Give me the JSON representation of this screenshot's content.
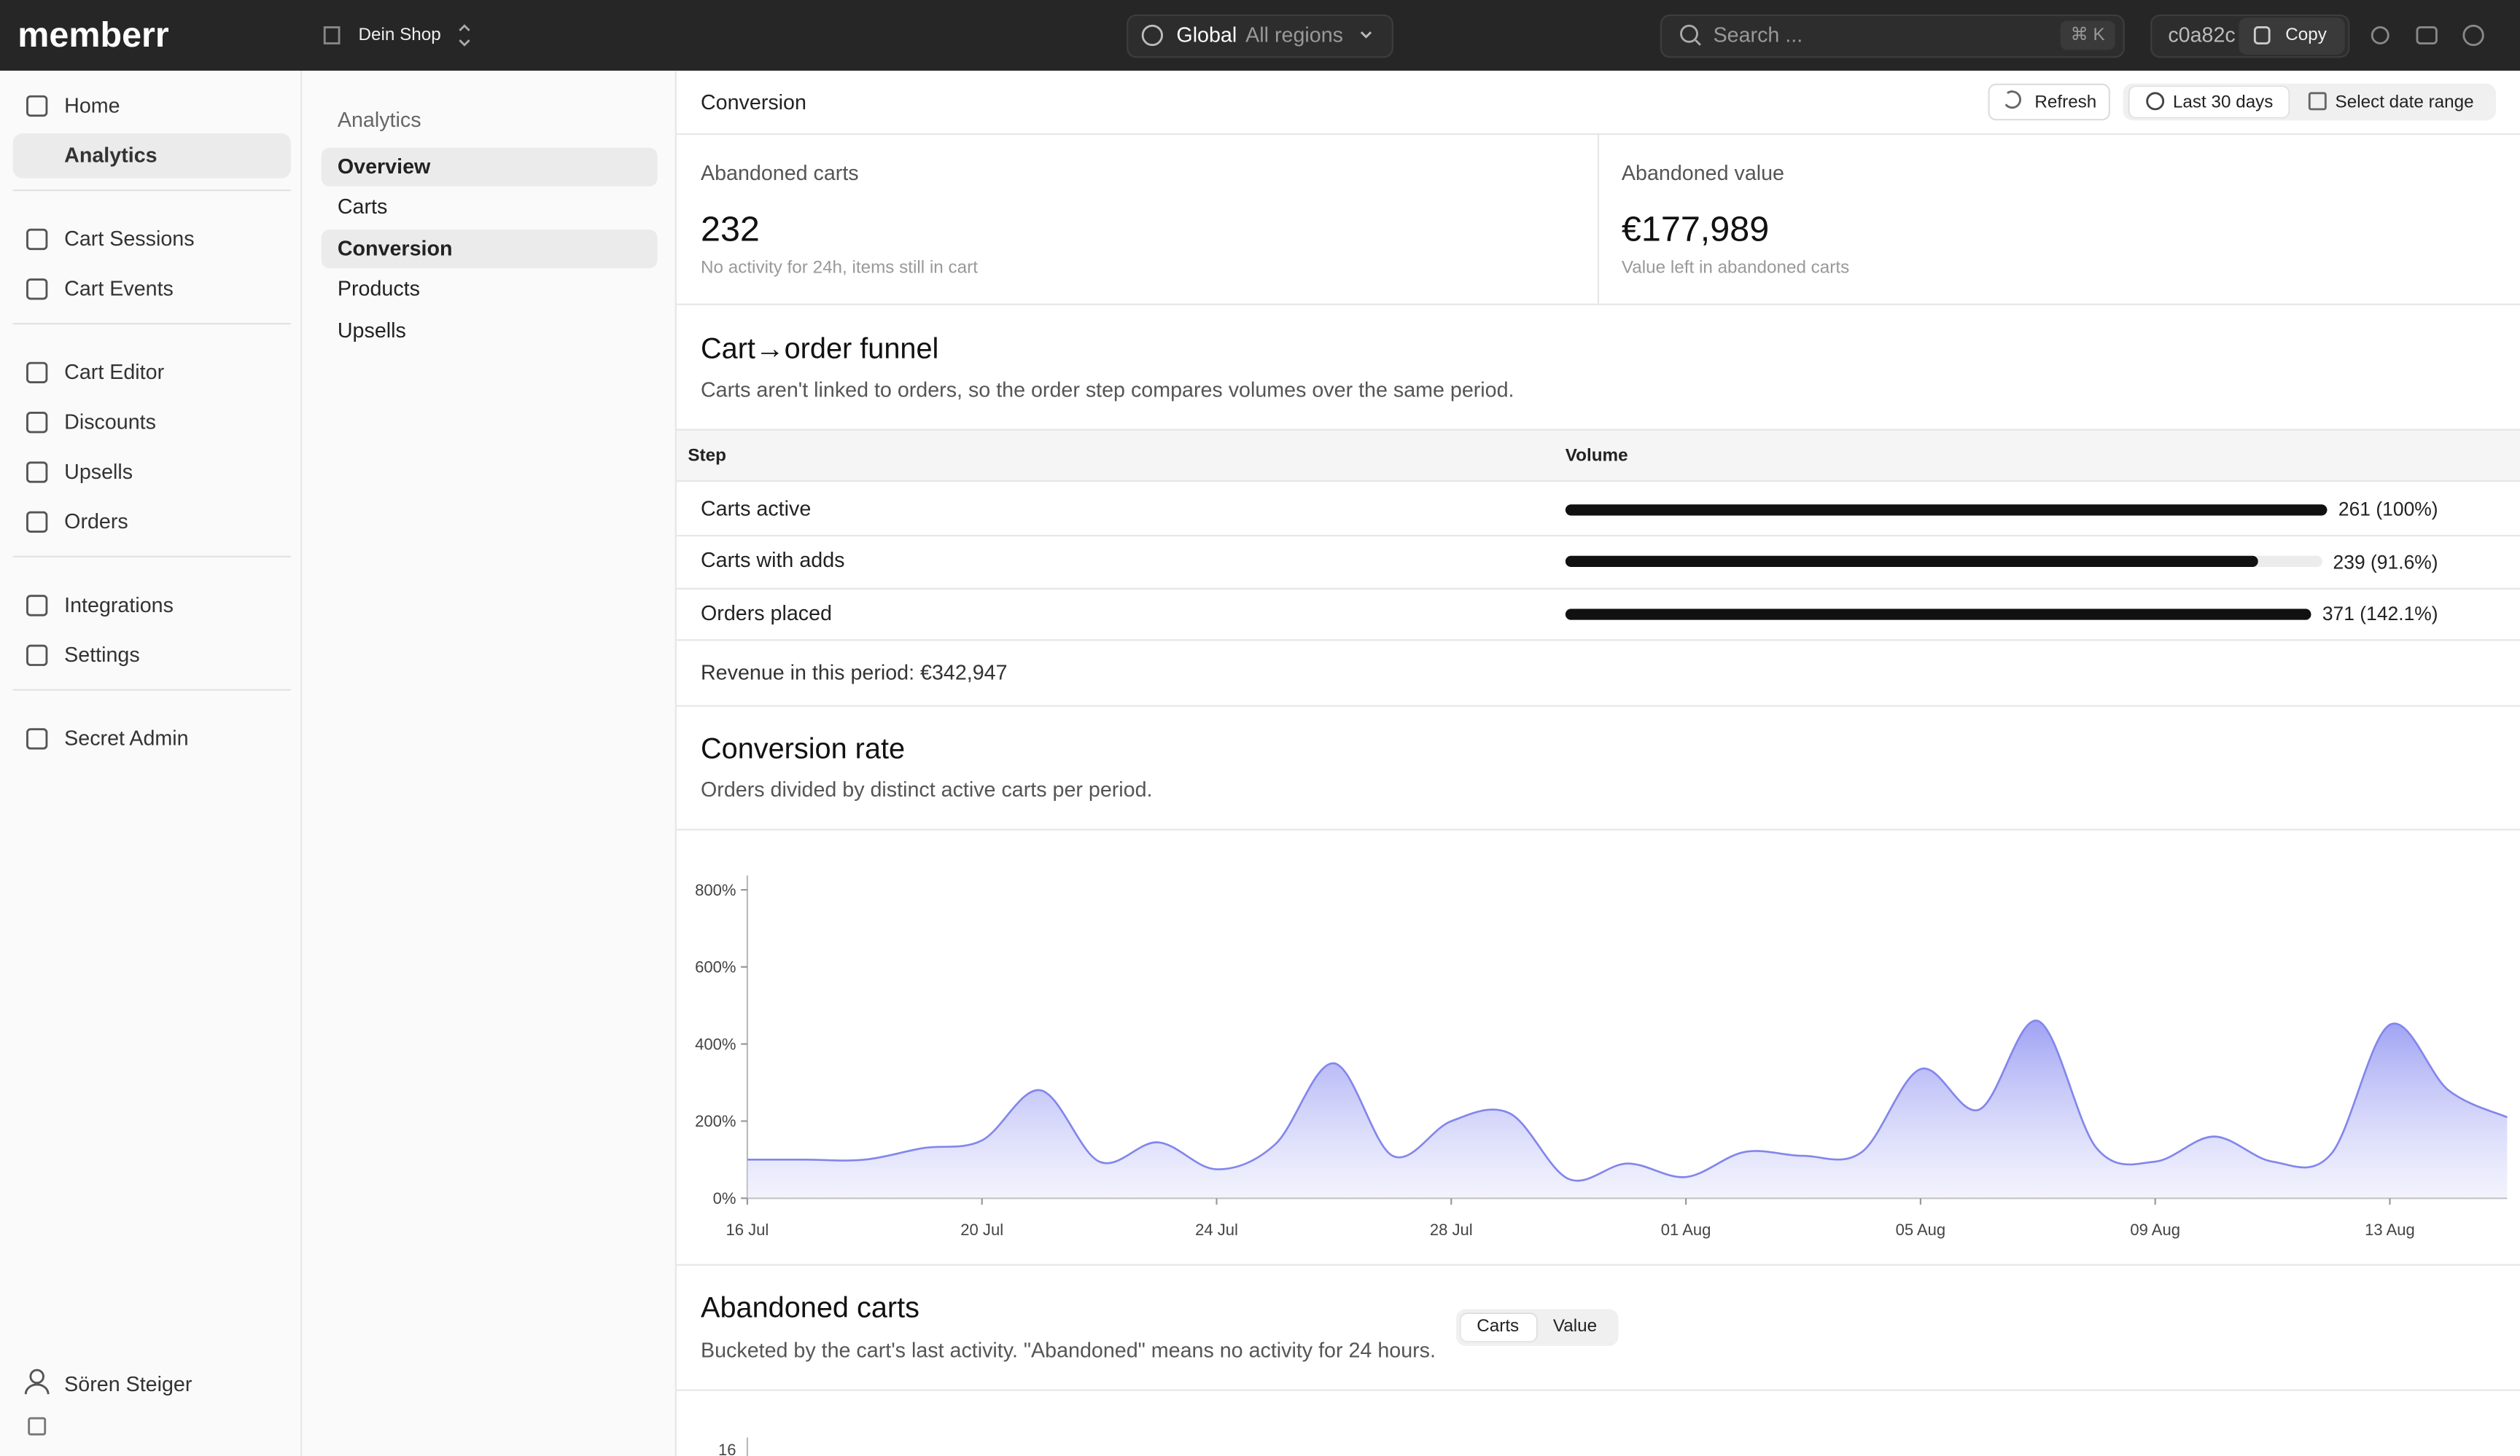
{
  "topbar": {
    "logo": "memberr",
    "shop": "Dein Shop",
    "region": "Global",
    "region_scope": "All regions",
    "search_placeholder": "Search ...",
    "shortcut": "⌘ K",
    "id": "c0a82c",
    "copy": "Copy"
  },
  "sidebar": {
    "groups": [
      {
        "items": [
          {
            "label": "Home"
          },
          {
            "label": "Analytics",
            "active": true
          }
        ]
      },
      {
        "items": [
          {
            "label": "Cart Sessions"
          },
          {
            "label": "Cart Events"
          }
        ]
      },
      {
        "items": [
          {
            "label": "Cart Editor"
          },
          {
            "label": "Discounts"
          },
          {
            "label": "Upsells"
          },
          {
            "label": "Orders"
          }
        ]
      },
      {
        "items": [
          {
            "label": "Integrations"
          },
          {
            "label": "Settings"
          }
        ]
      },
      {
        "items": [
          {
            "label": "Secret Admin"
          }
        ]
      }
    ],
    "user": "Sören Steiger"
  },
  "subnav": {
    "title": "Analytics",
    "items": [
      {
        "label": "Overview",
        "active": true
      },
      {
        "label": "Carts"
      },
      {
        "label": "Conversion",
        "active": true
      },
      {
        "label": "Products"
      },
      {
        "label": "Upsells"
      }
    ]
  },
  "header": {
    "title": "Conversion",
    "refresh": "Refresh",
    "range": "Last 30 days",
    "select": "Select date range"
  },
  "stats": [
    {
      "label": "Abandoned carts",
      "value": "232",
      "note": "No activity for 24h, items still in cart"
    },
    {
      "label": "Abandoned value",
      "value": "€177,989",
      "note": "Value left in abandoned carts"
    }
  ],
  "funnel": {
    "title": "Cart→order funnel",
    "subtitle": "Carts aren't linked to orders, so the order step compares volumes over the same period.",
    "columns": [
      "Step",
      "Volume"
    ],
    "steps": [
      {
        "label": "Carts active",
        "value": 261,
        "value_label": "261 (100%)"
      },
      {
        "label": "Carts with adds",
        "value": 239,
        "value_label": "239 (91.6%)"
      },
      {
        "label": "Orders placed",
        "value": 371,
        "value_label": "371 (142.1%)"
      }
    ],
    "revenue": "Revenue in this period: €342,947"
  },
  "chart_data": {
    "type": "area",
    "title": "Conversion rate",
    "subtitle": "Orders divided by distinct active carts per period.",
    "x": [
      "16 Jul",
      null,
      null,
      null,
      "20 Jul",
      null,
      null,
      null,
      "24 Jul",
      null,
      null,
      null,
      "28 Jul",
      null,
      null,
      null,
      "01 Aug",
      null,
      null,
      null,
      "05 Aug",
      null,
      null,
      null,
      "09 Aug",
      null,
      null,
      null,
      "13 Aug",
      null,
      null
    ],
    "values": [
      100,
      100,
      100,
      130,
      150,
      280,
      95,
      145,
      75,
      140,
      350,
      110,
      200,
      220,
      50,
      90,
      55,
      120,
      110,
      120,
      335,
      230,
      460,
      130,
      95,
      160,
      95,
      115,
      450,
      280,
      210
    ],
    "color": "#8286ec",
    "ylim": [
      0,
      800
    ],
    "yticks": [
      {
        "value": 0,
        "label": "0%"
      },
      {
        "value": 200,
        "label": "200%"
      },
      {
        "value": 400,
        "label": "400%"
      },
      {
        "value": 600,
        "label": "600%"
      },
      {
        "value": 800,
        "label": "800%"
      }
    ]
  },
  "abandoned": {
    "title": "Abandoned carts",
    "subtitle": "Bucketed by the cart's last activity. \"Abandoned\" means no activity for 24 hours.",
    "toggle": [
      "Carts",
      "Value"
    ],
    "ytick": "16"
  }
}
